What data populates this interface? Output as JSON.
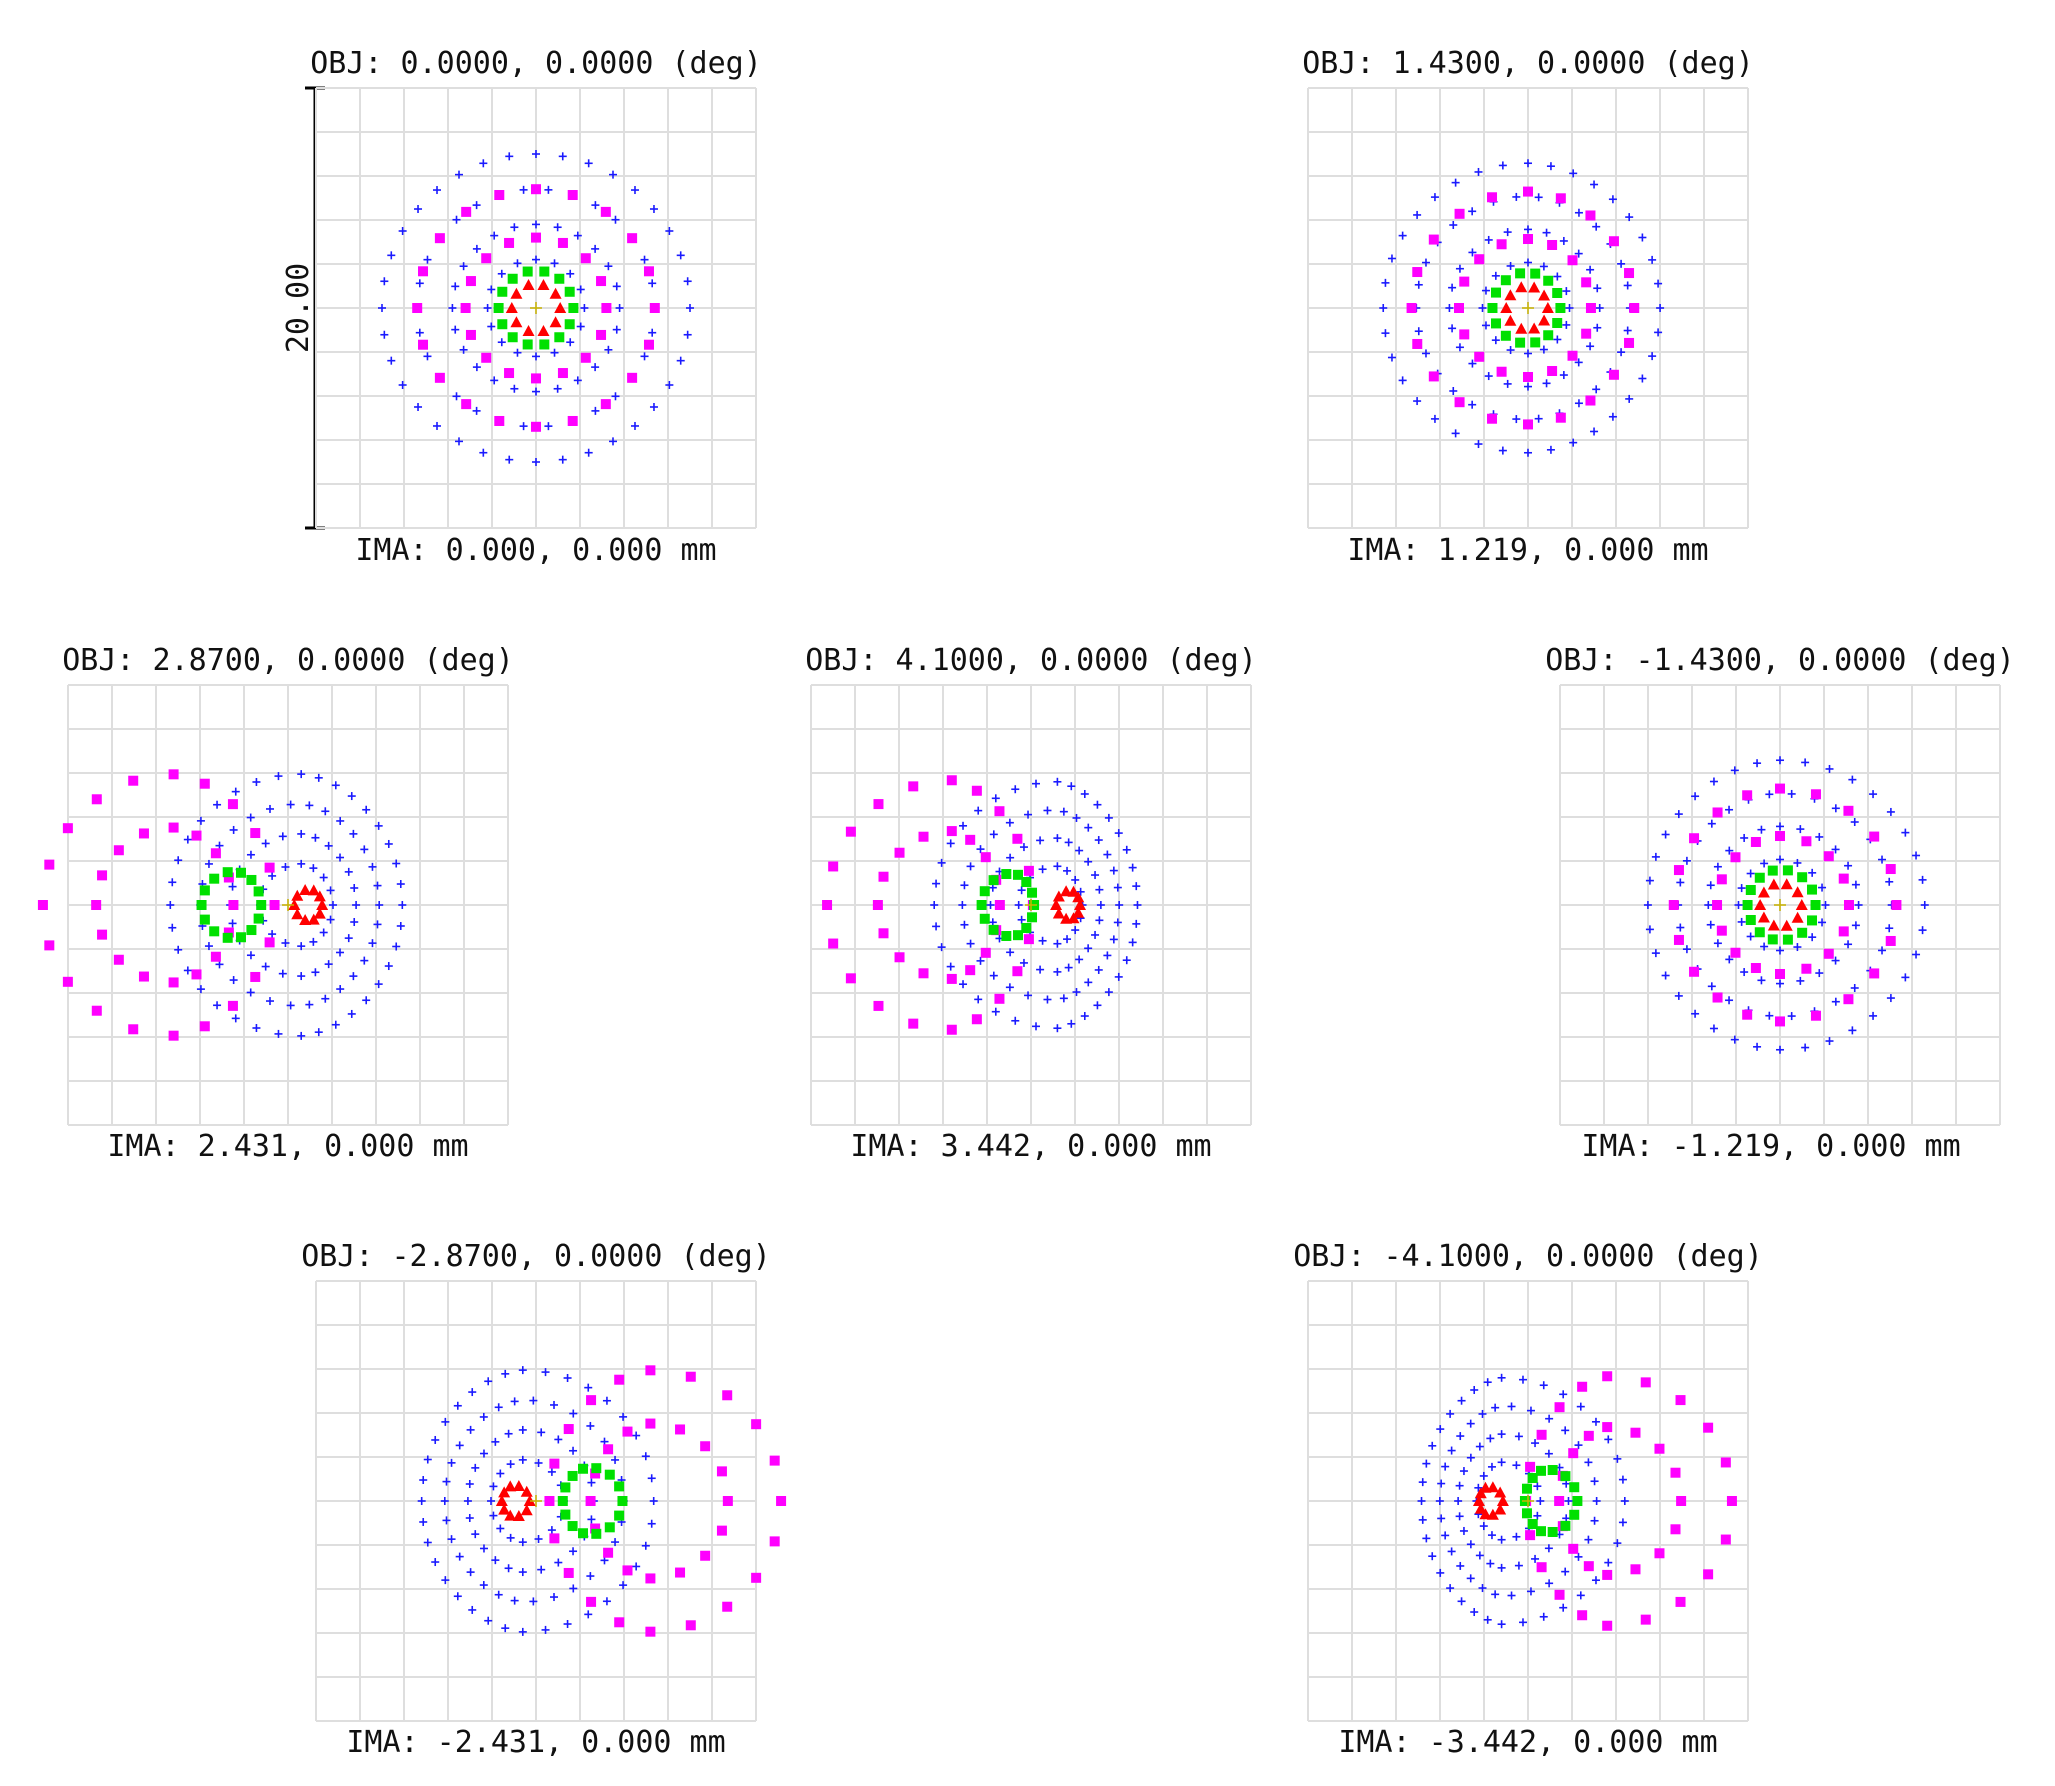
{
  "chart_data": {
    "type": "scatter",
    "title": "",
    "grid": true,
    "colors": {
      "blue": "#1a1aff",
      "magenta": "#ff00ff",
      "green": "#00e000",
      "red": "#ff0000",
      "yellow": "#c8b400",
      "grid": "#dedede"
    },
    "scale_bar": {
      "label": "20.00",
      "units": "mm-diagram"
    },
    "plots": [
      {
        "obj_label": "OBJ: 0.0000, 0.0000 (deg)",
        "ima_label": "IMA: 0.000, 0.000 mm",
        "field_deg": 0.0,
        "direction": 0,
        "shift": [
          0.0,
          0.0,
          0.0,
          0.0
        ],
        "radius_scale": [
          1.0,
          1.0,
          1.0,
          1.0
        ],
        "coma": 0.0
      },
      {
        "obj_label": "OBJ: 1.4300, 0.0000 (deg)",
        "ima_label": "IMA: 1.219, 0.000 mm",
        "field_deg": 1.43,
        "direction": 1,
        "shift": [
          0.0,
          0.0,
          0.0,
          0.0
        ],
        "radius_scale": [
          0.94,
          0.98,
          0.95,
          0.9
        ],
        "coma": 0.25
      },
      {
        "obj_label": "OBJ: 2.8700, 0.0000 (deg)",
        "ima_label": "IMA: 2.431, 0.000 mm",
        "field_deg": 2.87,
        "direction": 1,
        "shift": [
          0.3,
          -2.6,
          -1.2,
          0.5
        ],
        "radius_scale": [
          0.85,
          1.1,
          0.9,
          0.65
        ],
        "coma": 0.65
      },
      {
        "obj_label": "OBJ: 4.1000, 0.0000 (deg)",
        "ima_label": "IMA: 3.442, 0.000 mm",
        "field_deg": 4.1,
        "direction": 1,
        "shift": [
          0.6,
          -1.8,
          -0.4,
          0.9
        ],
        "radius_scale": [
          0.8,
          1.05,
          0.85,
          0.6
        ],
        "coma": 1.0
      },
      {
        "obj_label": "OBJ: -1.4300, 0.0000 (deg)",
        "ima_label": "IMA: -1.219, 0.000 mm",
        "field_deg": -1.43,
        "direction": -1,
        "shift": [
          0.0,
          0.0,
          0.0,
          0.0
        ],
        "radius_scale": [
          0.94,
          0.98,
          0.95,
          0.9
        ],
        "coma": 0.25
      },
      {
        "obj_label": "OBJ: -2.8700, 0.0000 (deg)",
        "ima_label": "IMA: -2.431, 0.000 mm",
        "field_deg": -2.87,
        "direction": -1,
        "shift": [
          0.3,
          -2.6,
          -1.2,
          0.5
        ],
        "radius_scale": [
          0.85,
          1.1,
          0.9,
          0.65
        ],
        "coma": 0.65
      },
      {
        "obj_label": "OBJ: -4.1000, 0.0000 (deg)",
        "ima_label": "IMA: -3.442, 0.000 mm",
        "field_deg": -4.1,
        "direction": -1,
        "shift": [
          0.6,
          -1.8,
          -0.4,
          0.9
        ],
        "radius_scale": [
          0.8,
          1.05,
          0.85,
          0.6
        ],
        "coma": 1.0
      }
    ]
  }
}
